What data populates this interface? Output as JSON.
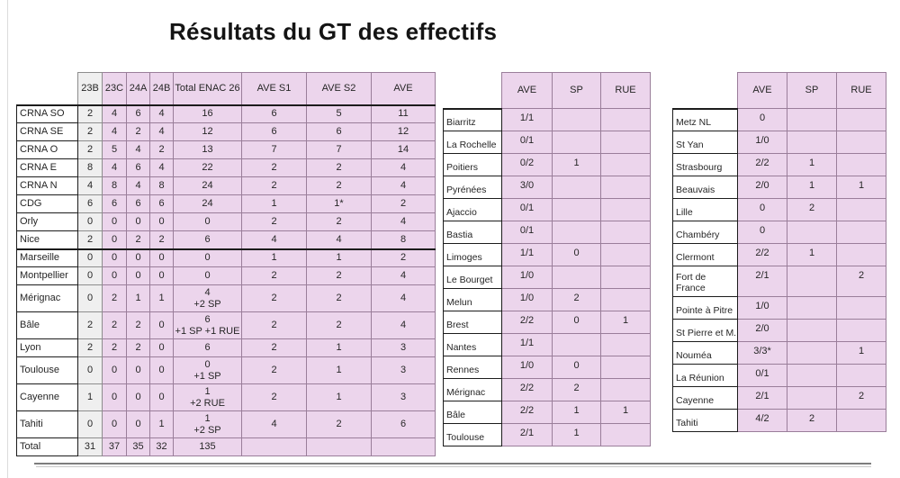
{
  "title": "Résultats du GT des effectifs",
  "colors": {
    "cell_pink": "#ecd5ec",
    "cell_pink_border": "#9a7e9a",
    "cell_gray": "#efefef",
    "label_border": "#1c1c1c"
  },
  "main_table": {
    "columns": [
      "23B",
      "23C",
      "24A",
      "24B",
      "Total ENAC 26",
      "AVE S1",
      "AVE S2",
      "AVE"
    ],
    "rows": [
      {
        "label": "CRNA SO",
        "values": [
          "2",
          "4",
          "6",
          "4",
          "16",
          "6",
          "5",
          "11"
        ]
      },
      {
        "label": "CRNA SE",
        "values": [
          "2",
          "4",
          "2",
          "4",
          "12",
          "6",
          "6",
          "12"
        ]
      },
      {
        "label": "CRNA O",
        "values": [
          "2",
          "5",
          "4",
          "2",
          "13",
          "7",
          "7",
          "14"
        ]
      },
      {
        "label": "CRNA E",
        "values": [
          "8",
          "4",
          "6",
          "4",
          "22",
          "2",
          "2",
          "4"
        ]
      },
      {
        "label": "CRNA N",
        "values": [
          "4",
          "8",
          "4",
          "8",
          "24",
          "2",
          "2",
          "4"
        ]
      },
      {
        "label": "CDG",
        "values": [
          "6",
          "6",
          "6",
          "6",
          "24",
          "1",
          "1*",
          "2"
        ]
      },
      {
        "label": "Orly",
        "values": [
          "0",
          "0",
          "0",
          "0",
          "0",
          "2",
          "2",
          "4"
        ]
      },
      {
        "label": "Nice",
        "values": [
          "2",
          "0",
          "2",
          "2",
          "6",
          "4",
          "4",
          "8"
        ]
      },
      {
        "label": "Marseille",
        "values": [
          "0",
          "0",
          "0",
          "0",
          "0",
          "1",
          "1",
          "2"
        ]
      },
      {
        "label": "Montpellier",
        "values": [
          "0",
          "0",
          "0",
          "0",
          "0",
          "2",
          "2",
          "4"
        ]
      },
      {
        "label": "Mérignac",
        "values": [
          "0",
          "2",
          "1",
          "1",
          "4\n+2 SP",
          "2",
          "2",
          "4"
        ]
      },
      {
        "label": "Bâle",
        "values": [
          "2",
          "2",
          "2",
          "0",
          "6\n+1 SP +1 RUE",
          "2",
          "2",
          "4"
        ]
      },
      {
        "label": "Lyon",
        "values": [
          "2",
          "2",
          "2",
          "0",
          "6",
          "2",
          "1",
          "3"
        ]
      },
      {
        "label": "Toulouse",
        "values": [
          "0",
          "0",
          "0",
          "0",
          "0\n+1 SP",
          "2",
          "1",
          "3"
        ]
      },
      {
        "label": "Cayenne",
        "values": [
          "1",
          "0",
          "0",
          "0",
          "1\n+2 RUE",
          "2",
          "1",
          "3"
        ]
      },
      {
        "label": "Tahiti",
        "values": [
          "0",
          "0",
          "0",
          "1",
          "1\n+2 SP",
          "4",
          "2",
          "6"
        ]
      },
      {
        "label": "Total",
        "values": [
          "31",
          "37",
          "35",
          "32",
          "135",
          "",
          "",
          ""
        ]
      }
    ]
  },
  "middle_table": {
    "columns": [
      "AVE",
      "SP",
      "RUE"
    ],
    "rows": [
      {
        "label": "Biarritz",
        "values": [
          "1/1",
          "",
          ""
        ]
      },
      {
        "label": "La Rochelle",
        "values": [
          "0/1",
          "",
          ""
        ]
      },
      {
        "label": "Poitiers",
        "values": [
          "0/2",
          "1",
          ""
        ]
      },
      {
        "label": "Pyrénées",
        "values": [
          "3/0",
          "",
          ""
        ]
      },
      {
        "label": "Ajaccio",
        "values": [
          "0/1",
          "",
          ""
        ]
      },
      {
        "label": "Bastia",
        "values": [
          "0/1",
          "",
          ""
        ]
      },
      {
        "label": "Limoges",
        "values": [
          "1/1",
          "0",
          ""
        ]
      },
      {
        "label": "Le Bourget",
        "values": [
          "1/0",
          "",
          ""
        ]
      },
      {
        "label": "Melun",
        "values": [
          "1/0",
          "2",
          ""
        ]
      },
      {
        "label": "Brest",
        "values": [
          "2/2",
          "0",
          "1"
        ]
      },
      {
        "label": "Nantes",
        "values": [
          "1/1",
          "",
          ""
        ]
      },
      {
        "label": "Rennes",
        "values": [
          "1/0",
          "0",
          ""
        ]
      },
      {
        "label": "Mérignac",
        "values": [
          "2/2",
          "2",
          ""
        ]
      },
      {
        "label": "Bâle",
        "values": [
          "2/2",
          "1",
          "1"
        ]
      },
      {
        "label": "Toulouse",
        "values": [
          "2/1",
          "1",
          ""
        ]
      }
    ]
  },
  "right_table": {
    "columns": [
      "AVE",
      "SP",
      "RUE"
    ],
    "rows": [
      {
        "label": "Metz NL",
        "values": [
          "0",
          "",
          ""
        ]
      },
      {
        "label": "St Yan",
        "values": [
          "1/0",
          "",
          ""
        ]
      },
      {
        "label": "Strasbourg",
        "values": [
          "2/2",
          "1",
          ""
        ]
      },
      {
        "label": "Beauvais",
        "values": [
          "2/0",
          "1",
          "1"
        ]
      },
      {
        "label": "Lille",
        "values": [
          "0",
          "2",
          ""
        ]
      },
      {
        "label": "Chambéry",
        "values": [
          "0",
          "",
          ""
        ]
      },
      {
        "label": "Clermont",
        "values": [
          "2/2",
          "1",
          ""
        ]
      },
      {
        "label": "Fort de\nFrance",
        "values": [
          "2/1",
          "",
          "2"
        ]
      },
      {
        "label": "Pointe à Pitre",
        "values": [
          "1/0",
          "",
          ""
        ]
      },
      {
        "label": "St Pierre et M.",
        "values": [
          "2/0",
          "",
          ""
        ]
      },
      {
        "label": "Nouméa",
        "values": [
          "3/3*",
          "",
          "1"
        ]
      },
      {
        "label": "La Réunion",
        "values": [
          "0/1",
          "",
          ""
        ]
      },
      {
        "label": "Cayenne",
        "values": [
          "2/1",
          "",
          "2"
        ]
      },
      {
        "label": "Tahiti",
        "values": [
          "4/2",
          "2",
          ""
        ]
      }
    ]
  }
}
